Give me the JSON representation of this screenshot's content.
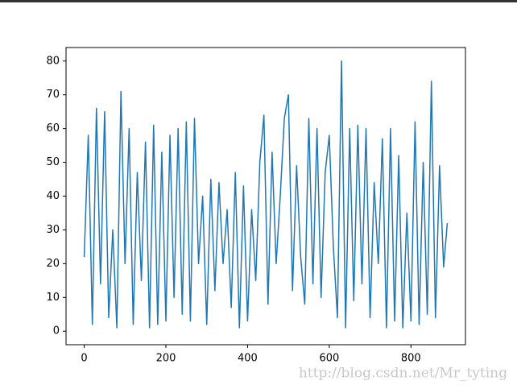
{
  "chart_data": {
    "type": "line",
    "x": [
      0,
      10,
      20,
      30,
      40,
      50,
      60,
      70,
      80,
      90,
      100,
      110,
      120,
      130,
      140,
      150,
      160,
      170,
      180,
      190,
      200,
      210,
      220,
      230,
      240,
      250,
      260,
      270,
      280,
      290,
      300,
      310,
      320,
      330,
      340,
      350,
      360,
      370,
      380,
      390,
      400,
      410,
      420,
      430,
      440,
      450,
      460,
      470,
      480,
      490,
      500,
      510,
      520,
      530,
      540,
      550,
      560,
      570,
      580,
      590,
      600,
      610,
      620,
      630,
      640,
      650,
      660,
      670,
      680,
      690,
      700,
      710,
      720,
      730,
      740,
      750,
      760,
      770,
      780,
      790,
      800,
      810,
      820,
      830,
      840,
      850,
      860,
      870,
      880,
      889
    ],
    "values": [
      22,
      58,
      2,
      66,
      14,
      65,
      4,
      30,
      1,
      71,
      20,
      60,
      2,
      47,
      15,
      56,
      1,
      61,
      2,
      53,
      3,
      58,
      10,
      60,
      5,
      62,
      3,
      63,
      20,
      40,
      2,
      45,
      12,
      44,
      20,
      36,
      7,
      47,
      1,
      43,
      3,
      36,
      15,
      50,
      64,
      8,
      53,
      20,
      40,
      63,
      70,
      12,
      49,
      22,
      8,
      63,
      14,
      60,
      10,
      47,
      58,
      25,
      4,
      80,
      1,
      60,
      9,
      61,
      14,
      60,
      4,
      44,
      20,
      57,
      1,
      60,
      3,
      52,
      1,
      35,
      3,
      62,
      2,
      50,
      5,
      74,
      4,
      49,
      19,
      32
    ],
    "color": "#1f77b4",
    "xlim": [
      -44.45,
      933.45
    ],
    "ylim": [
      -4,
      84
    ],
    "xticks": [
      0,
      200,
      400,
      600,
      800
    ],
    "yticks": [
      0,
      10,
      20,
      30,
      40,
      50,
      60,
      70,
      80
    ],
    "watermark": "http://blog.csdn.net/Mr_tyting"
  }
}
